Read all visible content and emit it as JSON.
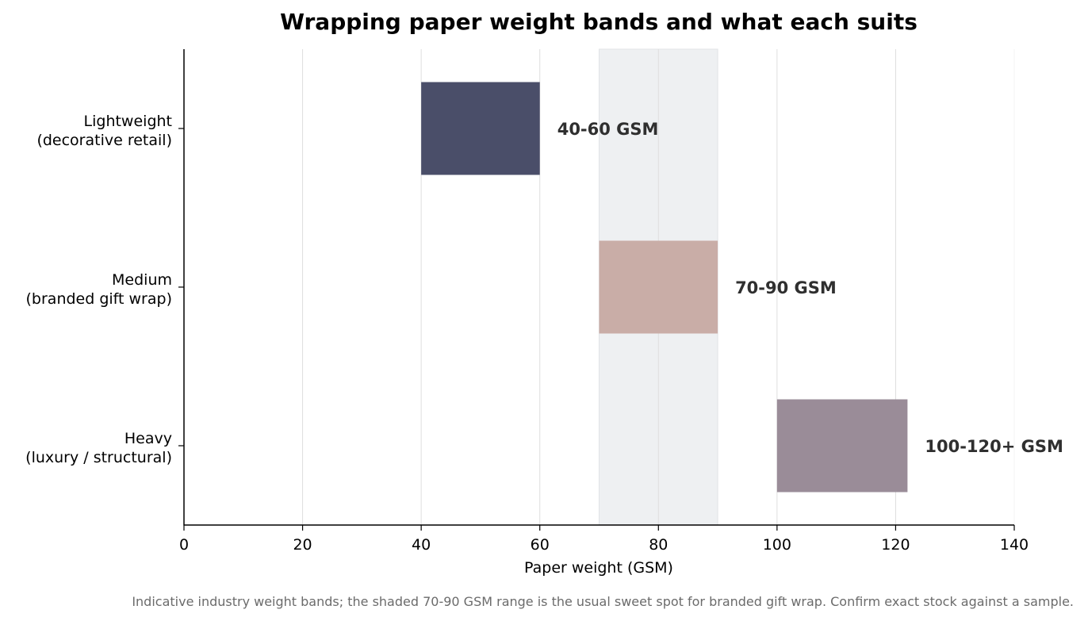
{
  "chart_data": {
    "type": "bar",
    "orientation": "horizontal-range",
    "title": "Wrapping paper weight bands and what each suits",
    "xlabel": "Paper weight (GSM)",
    "ylabel": "",
    "xlim": [
      0,
      140
    ],
    "xticks": [
      0,
      20,
      40,
      60,
      80,
      100,
      120,
      140
    ],
    "grid": "vertical",
    "categories": [
      {
        "line1": "Lightweight",
        "line2": "(decorative retail)"
      },
      {
        "line1": "Medium",
        "line2": "(branded gift wrap)"
      },
      {
        "line1": "Heavy",
        "line2": "(luxury / structural)"
      }
    ],
    "bars": [
      {
        "start": 40,
        "end": 60,
        "label": "40-60 GSM",
        "color": "#4a4e69"
      },
      {
        "start": 70,
        "end": 90,
        "label": "70-90 GSM",
        "color": "#c9ada7"
      },
      {
        "start": 100,
        "end": 122,
        "label": "100-120+ GSM",
        "color": "#9a8c98"
      }
    ],
    "highlight_band": {
      "start": 70,
      "end": 90,
      "color": "#eef0f2"
    },
    "footnote": "Indicative industry weight bands; the shaded 70-90 GSM range is the usual sweet spot for branded gift wrap. Confirm exact stock against a sample."
  }
}
